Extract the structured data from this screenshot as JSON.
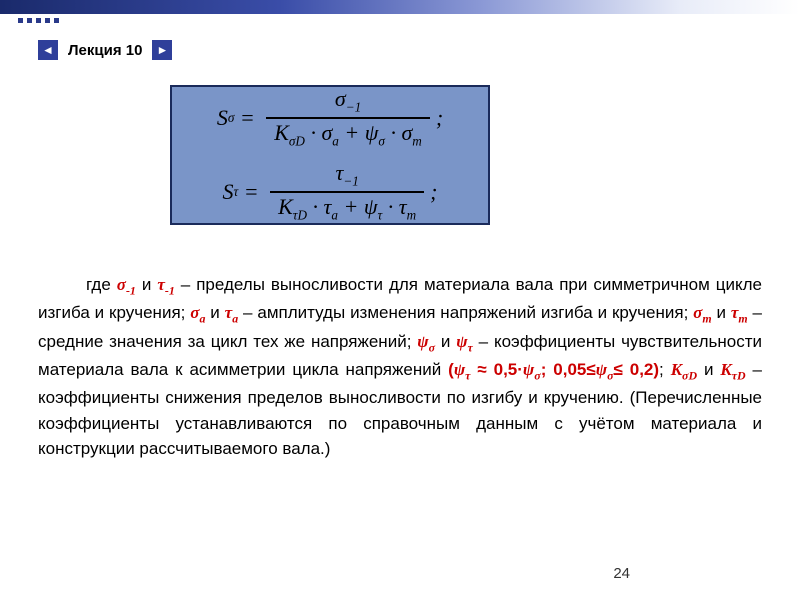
{
  "header": {
    "lecture_label": "Лекция 10",
    "prev_icon": "◄",
    "next_icon": "►"
  },
  "formula": {
    "box_bg": "#7a95c8",
    "box_border": "#1a2a5a",
    "eq1": {
      "lhs": "S",
      "lhs_sub": "σ",
      "num": "σ",
      "num_sub": "−1",
      "den_K": "K",
      "den_K_sub": "σD",
      "den_sa": "σ",
      "den_sa_sub": "a",
      "den_psi": "ψ",
      "den_psi_sub": "σ",
      "den_sm": "σ",
      "den_sm_sub": "m"
    },
    "eq2": {
      "lhs": "S",
      "lhs_sub": "τ",
      "num": "τ",
      "num_sub": "−1",
      "den_K": "K",
      "den_K_sub": "τD",
      "den_ta": "τ",
      "den_ta_sub": "a",
      "den_psi": "ψ",
      "den_psi_sub": "τ",
      "den_tm": "τ",
      "den_tm_sub": "m"
    }
  },
  "text": {
    "p1": "где ",
    "r1a": "σ",
    "r1a_sub": "-1",
    "p1b": " и  ",
    "r1b": "τ",
    "r1b_sub": "-1",
    "p2": " – пределы выносливости для материала вала при симметричном цикле изгиба и кручения; ",
    "r2a": "σ",
    "r2a_sub": "a",
    "p2b": " и ",
    "r2b": "τ",
    "r2b_sub": "a",
    "p3": " – амплитуды изменения напряжений изгиба и кручения; ",
    "r3a": "σ",
    "r3a_sub": "m",
    "p3b": " и ",
    "r3b": "τ",
    "r3b_sub": "m",
    "p4": " – средние значения за цикл тех же напряжений; ",
    "r4a": "ψ",
    "r4a_sub": "σ",
    "p4b": " и ",
    "r4b": "ψ",
    "r4b_sub": "τ",
    "p5": " – коэффициенты чувствительности материала вала к асимметрии цикла напряжений ",
    "rrange_open": "(",
    "rrange_psi_t": "ψ",
    "rrange_psi_t_sub": "τ",
    "rrange_approx": " ≈ 0,5·",
    "rrange_psi_s": "ψ",
    "rrange_psi_s_sub": "σ",
    "rrange_sep": ";  0,05≤",
    "rrange_psi_s2": "ψ",
    "rrange_psi_s2_sub": "σ",
    "rrange_close": "≤ 0,2)",
    "p6a": "; ",
    "r6a": "K",
    "r6a_sub": "σD",
    "p6b": " и ",
    "r6b": "K",
    "r6b_sub": "τD",
    "p7": " – коэффициенты снижения пределов выносливости по изгибу и кручению. (Перечисленные коэффициенты устанавливаются по справочным данным с учётом материала и конструкции рассчитываемого вала.)"
  },
  "page_number": "24",
  "colors": {
    "gradient_dark": "#1a2a6b",
    "accent_red": "#cc0000",
    "text": "#000000"
  }
}
